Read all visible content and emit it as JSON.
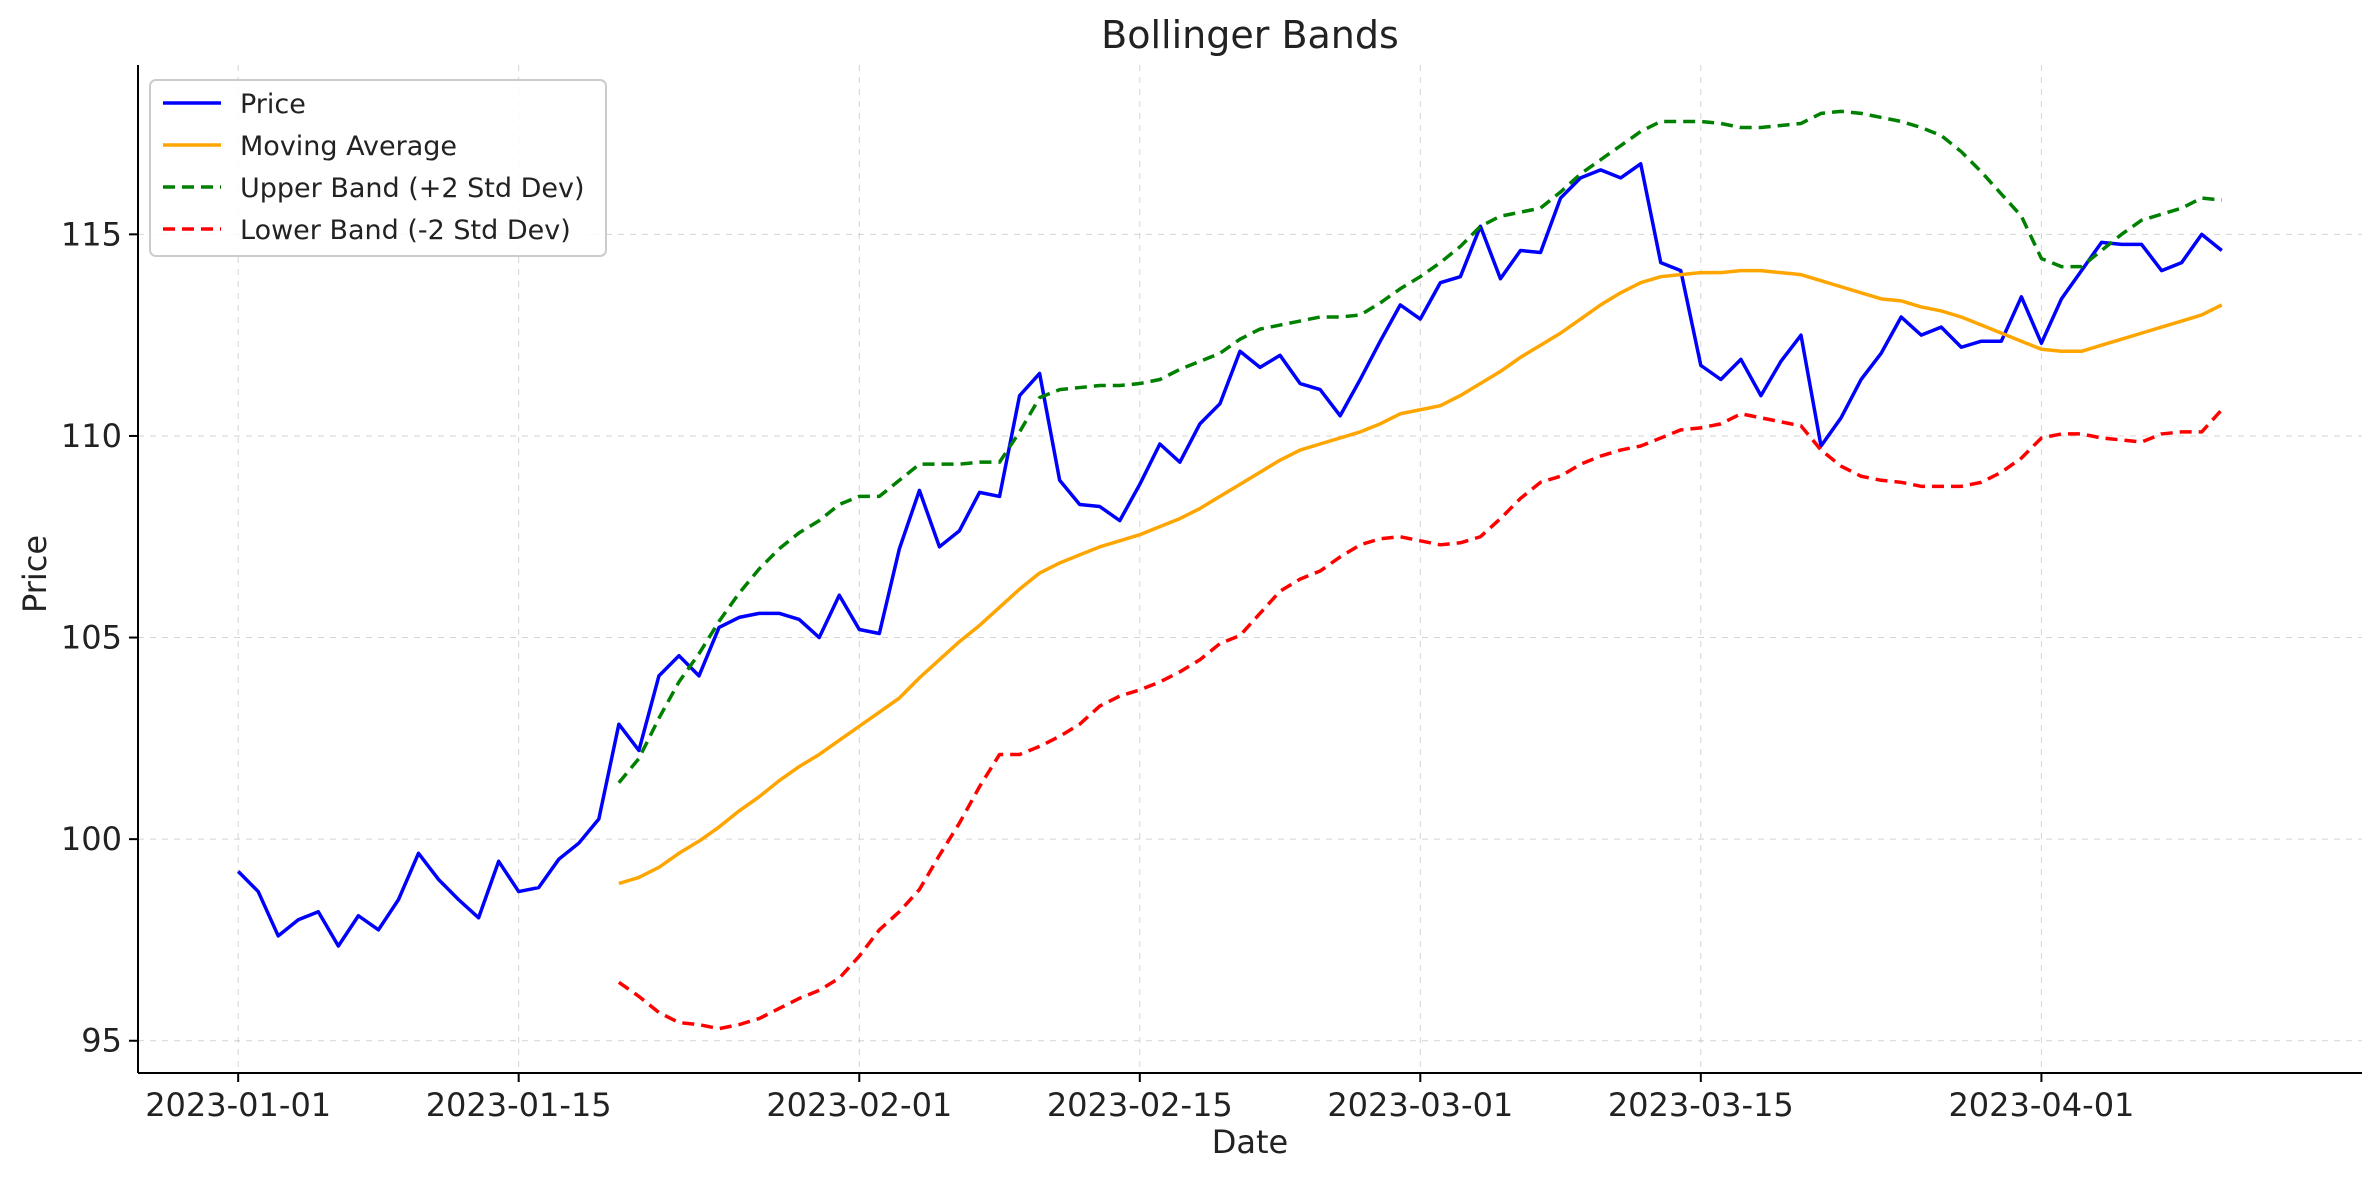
{
  "chart_data": {
    "type": "line",
    "title": "Bollinger Bands",
    "xlabel": "Date",
    "ylabel": "Price",
    "x_start": "2023-01-01",
    "x_ticks": [
      "2023-01-01",
      "2023-01-15",
      "2023-02-01",
      "2023-02-15",
      "2023-03-01",
      "2023-03-15",
      "2023-04-01"
    ],
    "y_ticks": [
      95,
      100,
      105,
      110,
      115
    ],
    "xlim": [
      "2022-12-27",
      "2023-04-17"
    ],
    "ylim": [
      94.2,
      119.2
    ],
    "grid": true,
    "legend_position": "top-left",
    "series": [
      {
        "name": "Price",
        "color": "#0000ff",
        "style": "solid",
        "start_date": "2023-01-01",
        "values": [
          99.2,
          98.7,
          97.6,
          98.0,
          98.2,
          97.35,
          98.1,
          97.75,
          98.5,
          99.65,
          99.0,
          98.5,
          98.05,
          99.45,
          98.7,
          98.8,
          99.5,
          99.9,
          100.5,
          102.85,
          102.2,
          104.05,
          104.55,
          104.05,
          105.25,
          105.5,
          105.6,
          105.6,
          105.45,
          105.0,
          106.05,
          105.2,
          105.1,
          107.2,
          108.65,
          107.25,
          107.65,
          108.6,
          108.5,
          111.0,
          111.55,
          108.9,
          108.3,
          108.25,
          107.9,
          108.8,
          109.8,
          109.35,
          110.3,
          110.8,
          112.1,
          111.7,
          112.0,
          111.3,
          111.15,
          110.5,
          111.4,
          112.35,
          113.25,
          112.9,
          113.8,
          113.95,
          115.2,
          113.9,
          114.6,
          114.55,
          115.9,
          116.4,
          116.6,
          116.4,
          116.75,
          114.3,
          114.1,
          111.75,
          111.4,
          111.9,
          111.0,
          111.85,
          112.5,
          109.75,
          110.45,
          111.4,
          112.05,
          112.95,
          112.5,
          112.7,
          112.2,
          112.35,
          112.35,
          113.45,
          112.3,
          113.4,
          114.1,
          114.8,
          114.75,
          114.75,
          114.1,
          114.3,
          115.0,
          114.6
        ]
      },
      {
        "name": "Moving Average",
        "color": "#ffa500",
        "style": "solid",
        "start_date": "2023-01-20",
        "values": [
          98.9,
          99.05,
          99.3,
          99.65,
          99.95,
          100.3,
          100.7,
          101.05,
          101.45,
          101.8,
          102.1,
          102.45,
          102.8,
          103.15,
          103.5,
          104.0,
          104.45,
          104.9,
          105.3,
          105.75,
          106.2,
          106.6,
          106.85,
          107.05,
          107.25,
          107.4,
          107.55,
          107.75,
          107.95,
          108.2,
          108.5,
          108.8,
          109.1,
          109.4,
          109.65,
          109.8,
          109.95,
          110.1,
          110.3,
          110.55,
          110.65,
          110.75,
          111.0,
          111.3,
          111.6,
          111.95,
          112.25,
          112.55,
          112.9,
          113.25,
          113.55,
          113.8,
          113.95,
          114.0,
          114.05,
          114.05,
          114.1,
          114.1,
          114.05,
          114.0,
          113.85,
          113.7,
          113.55,
          113.4,
          113.35,
          113.2,
          113.1,
          112.95,
          112.75,
          112.55,
          112.35,
          112.15,
          112.1,
          112.1,
          112.25,
          112.4,
          112.55,
          112.7,
          112.85,
          113.0,
          113.25
        ]
      },
      {
        "name": "Upper Band (+2 Std Dev)",
        "color": "#008000",
        "style": "dashed",
        "start_date": "2023-01-20",
        "values": [
          101.4,
          102.0,
          103.0,
          103.9,
          104.6,
          105.4,
          106.1,
          106.7,
          107.2,
          107.6,
          107.9,
          108.3,
          108.5,
          108.5,
          108.9,
          109.3,
          109.3,
          109.3,
          109.35,
          109.35,
          110.1,
          110.95,
          111.15,
          111.2,
          111.25,
          111.25,
          111.3,
          111.4,
          111.65,
          111.85,
          112.05,
          112.4,
          112.65,
          112.75,
          112.85,
          112.95,
          112.95,
          113.0,
          113.3,
          113.65,
          113.95,
          114.3,
          114.7,
          115.2,
          115.45,
          115.55,
          115.65,
          116.05,
          116.5,
          116.85,
          117.2,
          117.55,
          117.8,
          117.8,
          117.8,
          117.75,
          117.65,
          117.65,
          117.7,
          117.75,
          118.0,
          118.05,
          118.0,
          117.9,
          117.8,
          117.65,
          117.45,
          117.05,
          116.55,
          116.0,
          115.45,
          114.4,
          114.2,
          114.2,
          114.6,
          115.0,
          115.35,
          115.5,
          115.65,
          115.9,
          115.85
        ]
      },
      {
        "name": "Lower Band (-2 Std Dev)",
        "color": "#ff0000",
        "style": "dashed",
        "start_date": "2023-01-20",
        "values": [
          96.45,
          96.1,
          95.7,
          95.45,
          95.4,
          95.3,
          95.4,
          95.55,
          95.8,
          96.05,
          96.25,
          96.55,
          97.1,
          97.75,
          98.2,
          98.75,
          99.6,
          100.4,
          101.3,
          102.1,
          102.1,
          102.3,
          102.55,
          102.85,
          103.3,
          103.55,
          103.7,
          103.9,
          104.15,
          104.45,
          104.85,
          105.05,
          105.6,
          106.15,
          106.45,
          106.65,
          107.0,
          107.3,
          107.45,
          107.5,
          107.4,
          107.3,
          107.35,
          107.5,
          107.95,
          108.45,
          108.85,
          109.0,
          109.3,
          109.5,
          109.65,
          109.75,
          109.95,
          110.15,
          110.2,
          110.3,
          110.55,
          110.45,
          110.35,
          110.25,
          109.65,
          109.25,
          109.0,
          108.9,
          108.85,
          108.75,
          108.75,
          108.75,
          108.85,
          109.1,
          109.45,
          109.95,
          110.05,
          110.05,
          109.95,
          109.9,
          109.85,
          110.05,
          110.1,
          110.1,
          110.65
        ]
      }
    ]
  }
}
